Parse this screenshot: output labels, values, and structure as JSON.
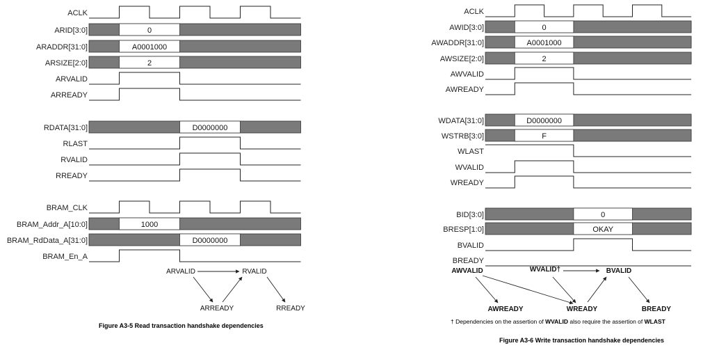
{
  "left_figure": {
    "caption": "Figure A3-5 Read transaction handshake dependencies",
    "clock_label": "ACLK",
    "groups": [
      {
        "signals": [
          {
            "name": "ACLK",
            "type": "clock",
            "high": [
              [
                1,
                2
              ],
              [
                3,
                4
              ],
              [
                5,
                6
              ]
            ]
          },
          {
            "name": "ARID[3:0]",
            "type": "bus",
            "data": [
              [
                1,
                3,
                "0"
              ]
            ]
          },
          {
            "name": "ARADDR[31:0]",
            "type": "bus",
            "data": [
              [
                1,
                3,
                "A0001000"
              ]
            ]
          },
          {
            "name": "ARSIZE[2:0]",
            "type": "bus",
            "data": [
              [
                1,
                3,
                "2"
              ]
            ]
          },
          {
            "name": "ARVALID",
            "type": "wire",
            "high": [
              [
                1,
                3
              ]
            ]
          },
          {
            "name": "ARREADY",
            "type": "wire",
            "high": [
              [
                1,
                3
              ]
            ]
          }
        ]
      },
      {
        "signals": [
          {
            "name": "RDATA[31:0]",
            "type": "bus",
            "data": [
              [
                3,
                5,
                "D0000000"
              ]
            ]
          },
          {
            "name": "RLAST",
            "type": "wire",
            "high": [
              [
                3,
                5
              ]
            ]
          },
          {
            "name": "RVALID",
            "type": "wire",
            "high": [
              [
                3,
                5
              ]
            ]
          },
          {
            "name": "RREADY",
            "type": "wire",
            "high": [
              [
                3,
                5
              ]
            ]
          }
        ]
      },
      {
        "signals": [
          {
            "name": "BRAM_CLK",
            "type": "clock",
            "high": [
              [
                1,
                2
              ],
              [
                3,
                4
              ],
              [
                5,
                6
              ]
            ]
          },
          {
            "name": "BRAM_Addr_A[10:0]",
            "type": "bus",
            "data": [
              [
                1,
                3,
                "1000"
              ]
            ]
          },
          {
            "name": "BRAM_RdData_A[31:0]",
            "type": "bus",
            "data": [
              [
                3,
                5,
                "D0000000"
              ]
            ]
          },
          {
            "name": "BRAM_En_A",
            "type": "wire",
            "high": [
              [
                1,
                3
              ]
            ]
          }
        ]
      }
    ],
    "dependencies": {
      "nodes": [
        "ARVALID",
        "RVALID",
        "ARREADY",
        "RREADY"
      ],
      "bold": false
    }
  },
  "right_figure": {
    "caption": "Figure A3-6 Write transaction handshake dependencies",
    "groups": [
      {
        "signals": [
          {
            "name": "ACLK",
            "type": "clock",
            "high": [
              [
                1,
                2
              ],
              [
                3,
                4
              ],
              [
                5,
                6
              ],
              [
                7,
                8
              ]
            ]
          },
          {
            "name": "AWID[3:0]",
            "type": "bus",
            "data": [
              [
                1,
                3,
                "0"
              ]
            ]
          },
          {
            "name": "AWADDR[31:0]",
            "type": "bus",
            "data": [
              [
                1,
                3,
                "A0001000"
              ]
            ]
          },
          {
            "name": "AWSIZE[2:0]",
            "type": "bus",
            "data": [
              [
                1,
                3,
                "2"
              ]
            ]
          },
          {
            "name": "AWVALID",
            "type": "wire",
            "high": [
              [
                1,
                3
              ]
            ]
          },
          {
            "name": "AWREADY",
            "type": "wire",
            "high": [
              [
                1,
                3
              ]
            ]
          }
        ]
      },
      {
        "signals": [
          {
            "name": "WDATA[31:0]",
            "type": "bus",
            "data": [
              [
                1,
                3,
                "D0000000"
              ]
            ]
          },
          {
            "name": "WSTRB[3:0]",
            "type": "bus",
            "data": [
              [
                1,
                3,
                "F"
              ]
            ]
          },
          {
            "name": "WLAST",
            "type": "wire",
            "high": [
              [
                0,
                3
              ]
            ]
          },
          {
            "name": "WVALID",
            "type": "wire",
            "high": [
              [
                1,
                3
              ]
            ]
          },
          {
            "name": "WREADY",
            "type": "wire",
            "high": [
              [
                1,
                3
              ]
            ]
          }
        ]
      },
      {
        "signals": [
          {
            "name": "BID[3:0]",
            "type": "bus",
            "data": [
              [
                3,
                5,
                "0"
              ]
            ]
          },
          {
            "name": "BRESP[1:0]",
            "type": "bus",
            "data": [
              [
                3,
                5,
                "OKAY"
              ]
            ]
          },
          {
            "name": "BVALID",
            "type": "wire",
            "high": [
              [
                3,
                5
              ]
            ]
          },
          {
            "name": "BREADY",
            "type": "wire",
            "high": []
          }
        ]
      }
    ],
    "dependencies": {
      "nodes": [
        "AWVALID",
        "WVALID",
        "BVALID",
        "AWREADY",
        "WREADY",
        "BREADY"
      ],
      "dagger": "†",
      "bold": true
    },
    "footnote": {
      "prefix": "† Dependencies on the assertion of ",
      "sig1": "WVALID",
      "mid": " also require the assertion of ",
      "sig2": "WLAST"
    }
  }
}
